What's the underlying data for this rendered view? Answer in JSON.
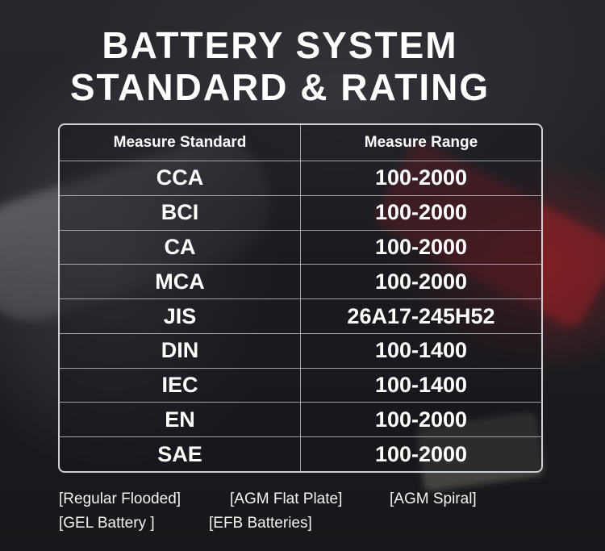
{
  "title": {
    "line1": "BATTERY SYSTEM",
    "line2": "STANDARD & RATING"
  },
  "table": {
    "headers": [
      "Measure Standard",
      "Measure Range"
    ],
    "rows": [
      [
        "CCA",
        "100-2000"
      ],
      [
        "BCI",
        "100-2000"
      ],
      [
        "CA",
        "100-2000"
      ],
      [
        "MCA",
        "100-2000"
      ],
      [
        "JIS",
        "26A17-245H52"
      ],
      [
        "DIN",
        "100-1400"
      ],
      [
        "IEC",
        "100-1400"
      ],
      [
        "EN",
        "100-2000"
      ],
      [
        "SAE",
        "100-2000"
      ]
    ]
  },
  "battery_types": {
    "line1": [
      "[Regular Flooded]",
      "[AGM Flat Plate]",
      "[AGM Spiral]"
    ],
    "line2": [
      "[GEL Battery ]",
      "[EFB Batteries]"
    ]
  }
}
